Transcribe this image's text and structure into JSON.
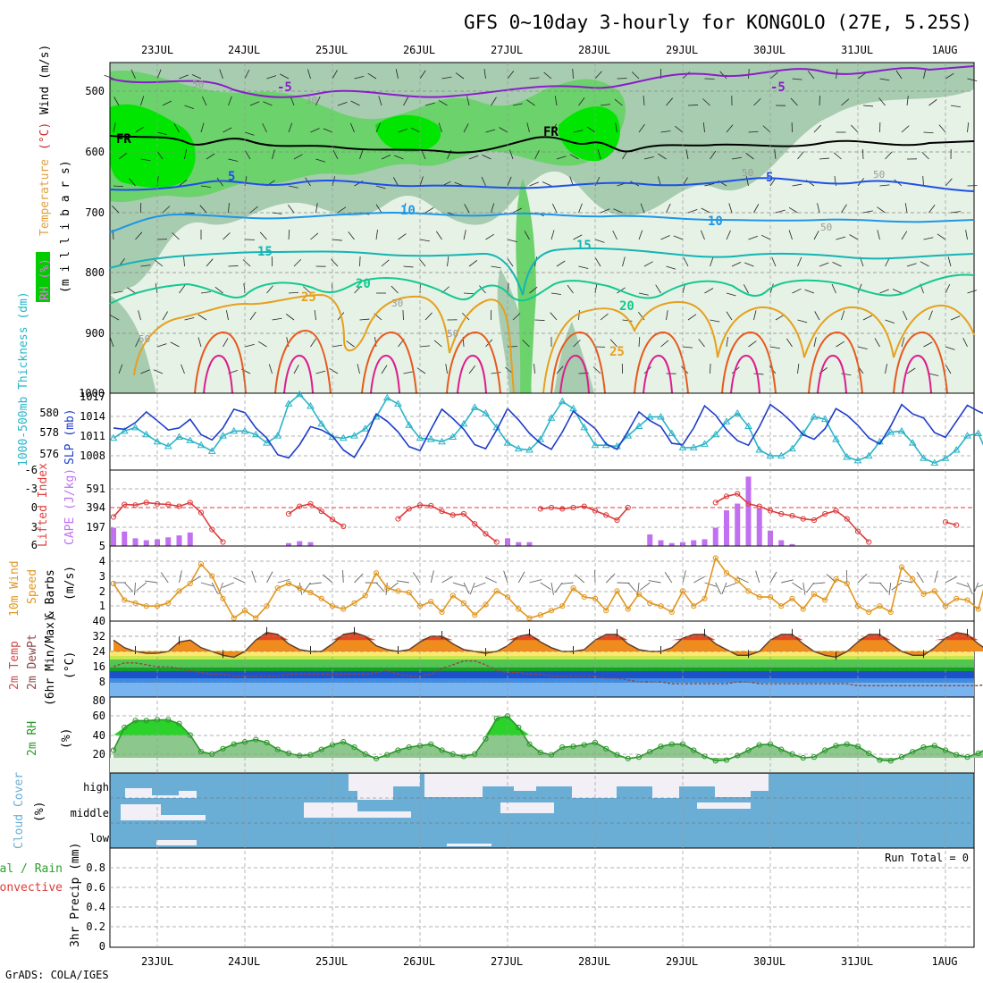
{
  "title": "GFS 0~10day 3-hourly for KONGOLO (27E, 5.25S)",
  "footer": "GrADS: COLA/IGES",
  "dates": [
    "23JUL",
    "24JUL",
    "25JUL",
    "26JUL",
    "27JUL",
    "28JUL",
    "29JUL",
    "30JUL",
    "31JUL",
    "1AUG"
  ],
  "colors": {
    "rh_light": "#e6f2e6",
    "rh_mid": "#a8ccb0",
    "rh_green": "#6cd26c",
    "rh_bright": "#00e600",
    "freezing": "#000000",
    "temp_neg5": "#8a1ec8",
    "temp_5": "#1e50e6",
    "temp_10": "#1e96e6",
    "temp_15": "#14b4b4",
    "temp_20": "#14c890",
    "temp_25": "#e6a01e",
    "temp_30": "#e65a1e",
    "temp_35": "#dc1e8c",
    "slp": "#1e3cc8",
    "thickness": "#28b4c8",
    "lifted_index": "#dc3c3c",
    "cape": "#c070f0",
    "wind10m": "#e0961e",
    "barb": "#646464",
    "dewpoint": "#8c4646",
    "rh2m": "#2a962a",
    "cloud": "#6aaed6",
    "cloud_clear": "#f2f0f6"
  },
  "panels": {
    "upper": {
      "ylabel_rh": "RH (%)",
      "ylabel_temp": "Temperature",
      "ylabel_tempunit": "(°C)",
      "ylabel_wind": "Wind (m/s)",
      "ylabel_pressure": "(m i l l i b a r s)",
      "pressure_ticks": [
        "500",
        "600",
        "700",
        "800",
        "900",
        "1000"
      ],
      "freezing_label": "FR",
      "contour_labels": [
        "-5",
        "-5",
        "5",
        "5",
        "10",
        "10",
        "15",
        "15",
        "20",
        "20",
        "25",
        "25"
      ],
      "rh_labels": [
        "50",
        "30",
        "50",
        "50",
        "30",
        "50",
        "50",
        "50"
      ]
    },
    "slp": {
      "ylabel_left": "1000-500mb Thickness (dm)",
      "ylabel_right": "SLP (mb)",
      "left_ticks": [
        "580",
        "578",
        "576"
      ],
      "right_ticks": [
        "1017",
        "1014",
        "1011",
        "1008"
      ]
    },
    "cape": {
      "ylabel_left": "Lifted Index",
      "ylabel_right": "CAPE (J/kg)",
      "left_ticks": [
        "-6",
        "-3",
        "0",
        "3",
        "6"
      ],
      "right_ticks": [
        "591",
        "394",
        "197"
      ]
    },
    "wind10m": {
      "ylabel_1": "10m Wind",
      "ylabel_2": "Speed",
      "ylabel_3": "& Barbs",
      "ylabel_unit": "(m/s)",
      "ticks": [
        "5",
        "4",
        "3",
        "2",
        "1"
      ]
    },
    "temp2m": {
      "ylabel_1": "2m Temp",
      "ylabel_2": "2m DewPt",
      "ylabel_3": "(6hr Min/Max)",
      "ylabel_unit": "(°C)",
      "ticks": [
        "40",
        "32",
        "24",
        "16",
        "8"
      ]
    },
    "rh2m": {
      "ylabel": "2m RH",
      "ylabel_unit": "(%)",
      "ticks": [
        "80",
        "60",
        "40",
        "20"
      ]
    },
    "cloud": {
      "ylabel": "Cloud Cover",
      "ylabel_unit": "(%)",
      "levels": [
        "high",
        "middle",
        "low"
      ]
    },
    "precip": {
      "ylabel_1": "Total / Rain",
      "ylabel_2": "Convective",
      "ylabel_3": "3hr Precip (mm)",
      "run_total": "Run Total = 0",
      "ticks": [
        "0.8",
        "0.6",
        "0.4",
        "0.2",
        "0"
      ]
    }
  },
  "chart_data": [
    {
      "type": "line",
      "title": "1000-500mb Thickness (dm) / SLP (mb)",
      "series": [
        {
          "name": "SLP (mb)",
          "values": [
            1011.8,
            1011.6,
            1012.6,
            1014.2,
            1012.9,
            1011.5,
            1011.8,
            1013.1,
            1010.8,
            1010.0,
            1011.8,
            1014.6,
            1014.1,
            1011.8,
            1010.3,
            1007.8,
            1007.3,
            1009.3,
            1012.0,
            1011.5,
            1010.6,
            1008.5,
            1007.4,
            1010.1,
            1013.9,
            1012.8,
            1011.2,
            1009.0,
            1008.4,
            1011.6,
            1014.6,
            1013.2,
            1011.6,
            1009.3,
            1008.7,
            1011.5,
            1014.7,
            1013.0,
            1011.0,
            1009.5,
            1008.6,
            1011.2,
            1014.3,
            1013.0,
            1011.7,
            1009.4,
            1008.6,
            1011.3,
            1014.2,
            1012.9,
            1012.0,
            1009.5,
            1009.3,
            1011.8,
            1015.1,
            1013.7,
            1011.5,
            1009.9,
            1009.2,
            1012.0,
            1015.3,
            1014.1,
            1012.6,
            1010.8,
            1010.1,
            1011.7,
            1014.7,
            1013.7,
            1012.2,
            1010.3,
            1009.4,
            1012.1,
            1015.3,
            1013.9,
            1013.3,
            1011.1,
            1010.4,
            1012.8,
            1015.2,
            1014.3,
            1013.6
          ]
        },
        {
          "name": "1000-500mb Thickness (dm)",
          "values": [
            577.7,
            578.3,
            578.6,
            578.0,
            577.4,
            577.0,
            577.8,
            577.5,
            577.1,
            576.6,
            577.9,
            578.3,
            578.3,
            578.0,
            577.3,
            577.9,
            580.6,
            581.4,
            580.4,
            578.9,
            577.8,
            577.7,
            577.9,
            578.5,
            579.5,
            581.1,
            580.6,
            578.8,
            577.7,
            577.6,
            577.4,
            577.8,
            578.9,
            580.3,
            579.8,
            578.6,
            577.3,
            576.8,
            576.7,
            577.6,
            579.4,
            580.8,
            580.2,
            578.6,
            577.1,
            577.1,
            577.0,
            577.9,
            578.7,
            579.5,
            579.5,
            578.1,
            576.9,
            576.9,
            577.2,
            578.0,
            579.1,
            579.8,
            578.7,
            576.7,
            576.2,
            576.2,
            576.8,
            578.1,
            579.5,
            579.3,
            577.6,
            576.1,
            575.8,
            576.2,
            577.4,
            578.2,
            578.3,
            577.3,
            576.0,
            575.6,
            576.0,
            576.7,
            577.9,
            578.1,
            576.0
          ]
        }
      ],
      "ylim_thickness": [
        575,
        581.5
      ],
      "ylim_slp": [
        1005.5,
        1017
      ]
    },
    {
      "type": "bar",
      "title": "Lifted Index / CAPE (J/kg)",
      "cape": [
        190,
        150,
        80,
        60,
        70,
        90,
        110,
        140,
        0,
        0,
        0,
        0,
        0,
        0,
        0,
        0,
        30,
        50,
        40,
        0,
        0,
        0,
        0,
        0,
        0,
        0,
        0,
        0,
        0,
        0,
        0,
        0,
        0,
        0,
        0,
        0,
        80,
        40,
        40,
        0,
        0,
        0,
        0,
        0,
        0,
        0,
        0,
        0,
        0,
        120,
        60,
        30,
        40,
        60,
        70,
        190,
        370,
        440,
        720,
        390,
        160,
        60,
        20,
        0,
        0,
        0,
        0,
        0,
        0,
        0,
        0,
        0,
        0,
        0,
        0,
        0,
        0,
        0,
        0,
        0,
        0
      ],
      "lifted_index": [
        1.5,
        -0.5,
        -0.4,
        -0.8,
        -0.6,
        -0.5,
        -0.2,
        -0.8,
        0.8,
        3.5,
        5.5,
        null,
        null,
        null,
        null,
        null,
        1.0,
        -0.2,
        -0.6,
        0.6,
        1.9,
        3.0,
        null,
        null,
        null,
        null,
        1.8,
        0.2,
        -0.4,
        -0.3,
        0.6,
        1.2,
        1.0,
        2.6,
        4.2,
        5.5,
        null,
        null,
        null,
        0.2,
        0.0,
        0.2,
        0.0,
        -0.2,
        0.5,
        1.2,
        2.0,
        0.0,
        null,
        null,
        null,
        null,
        null,
        null,
        null,
        -0.8,
        -1.8,
        -2.2,
        -0.6,
        -0.2,
        0.5,
        1.0,
        1.3,
        1.8,
        2.0,
        1.0,
        0.5,
        1.8,
        3.8,
        5.5,
        null,
        null,
        null,
        null,
        null,
        null,
        2.3,
        2.8,
        null,
        null,
        null
      ],
      "ylim_li": [
        6,
        -6
      ],
      "ylim_cape": [
        0,
        788
      ]
    },
    {
      "type": "line",
      "title": "10m Wind Speed (m/s)",
      "series": [
        {
          "name": "10m Wind Speed",
          "values": [
            2.5,
            1.4,
            1.2,
            1.0,
            1.0,
            1.2,
            2.0,
            2.5,
            3.8,
            3.0,
            1.5,
            0.2,
            0.7,
            0.2,
            1.0,
            2.2,
            2.5,
            2.2,
            1.9,
            1.5,
            1.0,
            0.8,
            1.2,
            1.7,
            3.2,
            2.2,
            2.0,
            1.9,
            1.0,
            1.3,
            0.6,
            1.7,
            1.2,
            0.4,
            1.1,
            2.0,
            1.6,
            0.8,
            0.2,
            0.4,
            0.7,
            1.0,
            2.2,
            1.6,
            1.5,
            0.7,
            2.0,
            0.8,
            1.8,
            1.2,
            1.0,
            0.6,
            2.0,
            1.0,
            1.5,
            4.2,
            3.2,
            2.7,
            2.0,
            1.6,
            1.6,
            1.0,
            1.5,
            0.8,
            1.8,
            1.4,
            2.8,
            2.5,
            1.0,
            0.6,
            1.0,
            0.6,
            3.6,
            2.8,
            1.8,
            2.0,
            1.0,
            1.5,
            1.4,
            0.8,
            3.5
          ]
        }
      ],
      "ylim": [
        0,
        5
      ]
    },
    {
      "type": "line",
      "title": "2m Temp / 2m DewPt (°C)",
      "series": [
        {
          "name": "2m Temp",
          "values": [
            30,
            26,
            24,
            23,
            23,
            24,
            29,
            30,
            26,
            24,
            22,
            21,
            24,
            30,
            34,
            33,
            28,
            25,
            24,
            24,
            28,
            33,
            34,
            32,
            27,
            25,
            24,
            25,
            29,
            32,
            32,
            28,
            25,
            24,
            23,
            24,
            27,
            32,
            33,
            29,
            26,
            24,
            24,
            25,
            30,
            33,
            33,
            28,
            25,
            24,
            24,
            26,
            31,
            33,
            33,
            28,
            25,
            22,
            22,
            24,
            30,
            33,
            33,
            28,
            24,
            22,
            21,
            24,
            29,
            33,
            33,
            28,
            24,
            22,
            22,
            26,
            31,
            34,
            33,
            28,
            24
          ]
        },
        {
          "name": "2m DewPt",
          "values": [
            16,
            18,
            18,
            17,
            16,
            16,
            15,
            14,
            13,
            12,
            12,
            11,
            11,
            11,
            11,
            11,
            12,
            12,
            12,
            12,
            12,
            12,
            12,
            12,
            13,
            14,
            12,
            11,
            11,
            12,
            15,
            17,
            19,
            19,
            17,
            14,
            13,
            13,
            12,
            12,
            11,
            11,
            11,
            11,
            11,
            10,
            10,
            9,
            8,
            8,
            8,
            7,
            7,
            7,
            7,
            7,
            7,
            8,
            8,
            7,
            7,
            7,
            7,
            7,
            7,
            7,
            7,
            7,
            6,
            6,
            6,
            6,
            6,
            6,
            6,
            6,
            6,
            6,
            6,
            6,
            7
          ]
        }
      ],
      "ylim": [
        0,
        40
      ]
    },
    {
      "type": "area",
      "title": "2m RH (%)",
      "series": [
        {
          "name": "2m RH",
          "values": [
            30,
            60,
            69,
            69,
            70,
            70,
            65,
            50,
            28,
            25,
            32,
            38,
            41,
            44,
            40,
            31,
            26,
            23,
            24,
            31,
            37,
            41,
            34,
            25,
            19,
            24,
            30,
            34,
            36,
            38,
            30,
            25,
            22,
            25,
            45,
            72,
            75,
            60,
            38,
            27,
            24,
            34,
            35,
            37,
            40,
            32,
            24,
            19,
            21,
            28,
            35,
            38,
            38,
            30,
            22,
            16,
            17,
            23,
            30,
            37,
            38,
            31,
            25,
            20,
            21,
            30,
            36,
            38,
            35,
            26,
            17,
            16,
            21,
            28,
            34,
            36,
            30,
            24,
            21,
            26,
            34
          ]
        }
      ],
      "ylim": [
        0,
        100
      ]
    },
    {
      "type": "bar",
      "title": "3hr Precip (mm)",
      "series": [
        {
          "name": "Total / Rain",
          "values": []
        },
        {
          "name": "Convective",
          "values": []
        }
      ],
      "ylim": [
        0,
        1.0
      ]
    }
  ]
}
